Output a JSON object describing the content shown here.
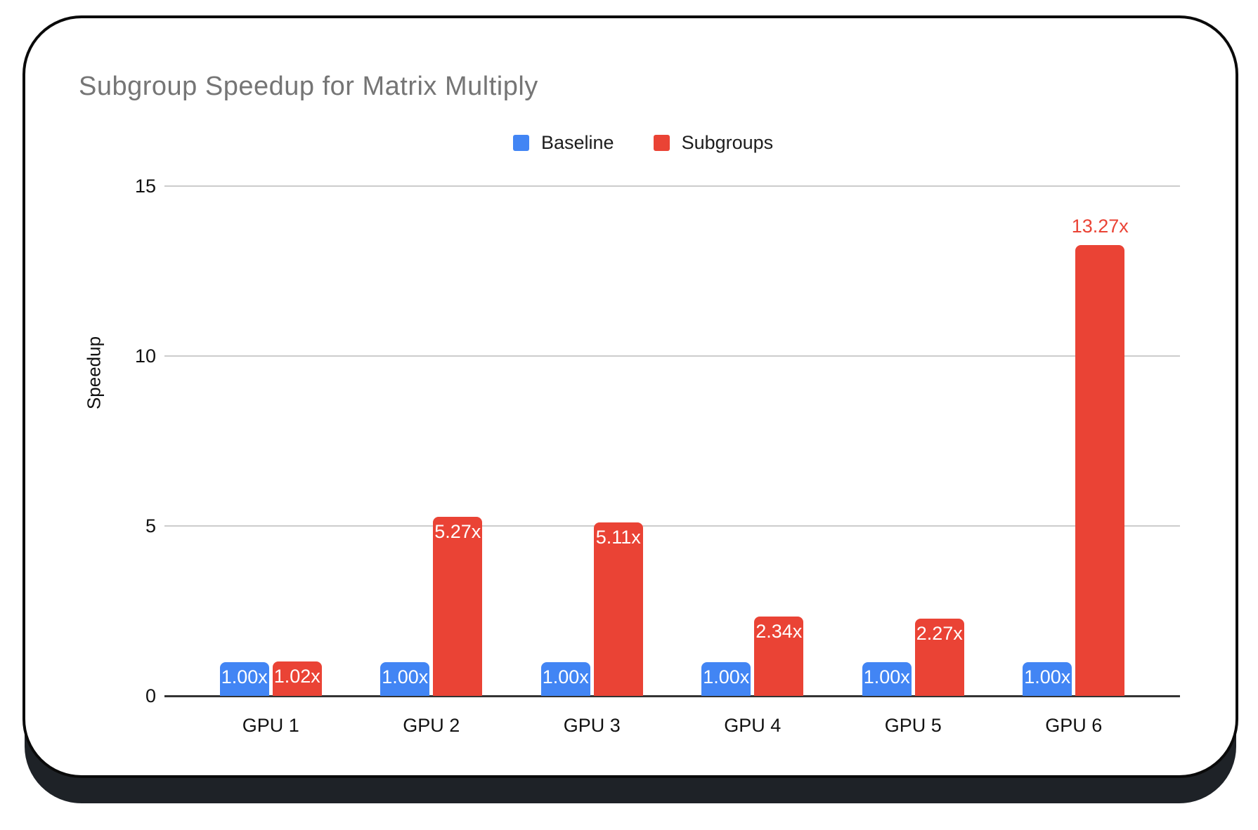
{
  "page": {
    "background": "#ffffff"
  },
  "card": {
    "background": "#ffffff",
    "border_color": "#0a0a0a",
    "shadow_color": "#1e2227"
  },
  "chart_data": {
    "type": "bar",
    "title": "Subgroup Speedup for Matrix Multiply",
    "title_color": "#757575",
    "categories": [
      "GPU 1",
      "GPU 2",
      "GPU 3",
      "GPU 4",
      "GPU 5",
      "GPU 6"
    ],
    "series": [
      {
        "name": "Baseline",
        "color": "#4285F4",
        "values": [
          1.0,
          1.0,
          1.0,
          1.0,
          1.0,
          1.0
        ],
        "data_labels": [
          "1.00x",
          "1.00x",
          "1.00x",
          "1.00x",
          "1.00x",
          "1.00x"
        ],
        "label_placement": [
          "inside",
          "inside",
          "inside",
          "inside",
          "inside",
          "inside"
        ]
      },
      {
        "name": "Subgroups",
        "color": "#EA4335",
        "values": [
          1.02,
          5.27,
          5.11,
          2.34,
          2.27,
          13.27
        ],
        "data_labels": [
          "1.02x",
          "5.27x",
          "5.11x",
          "2.34x",
          "2.27x",
          "13.27x"
        ],
        "label_placement": [
          "inside",
          "inside",
          "inside",
          "inside",
          "inside",
          "outside"
        ]
      }
    ],
    "xlabel": "",
    "ylabel": "Speedup",
    "ylim": [
      0,
      15
    ],
    "yticks": [
      0,
      5,
      10,
      15
    ],
    "grid": true,
    "legend_position": "top",
    "axis_color": "#333333",
    "gridline_color": "#cccccc",
    "tick_label_color": "#111111",
    "inside_label_color": "#ffffff"
  }
}
